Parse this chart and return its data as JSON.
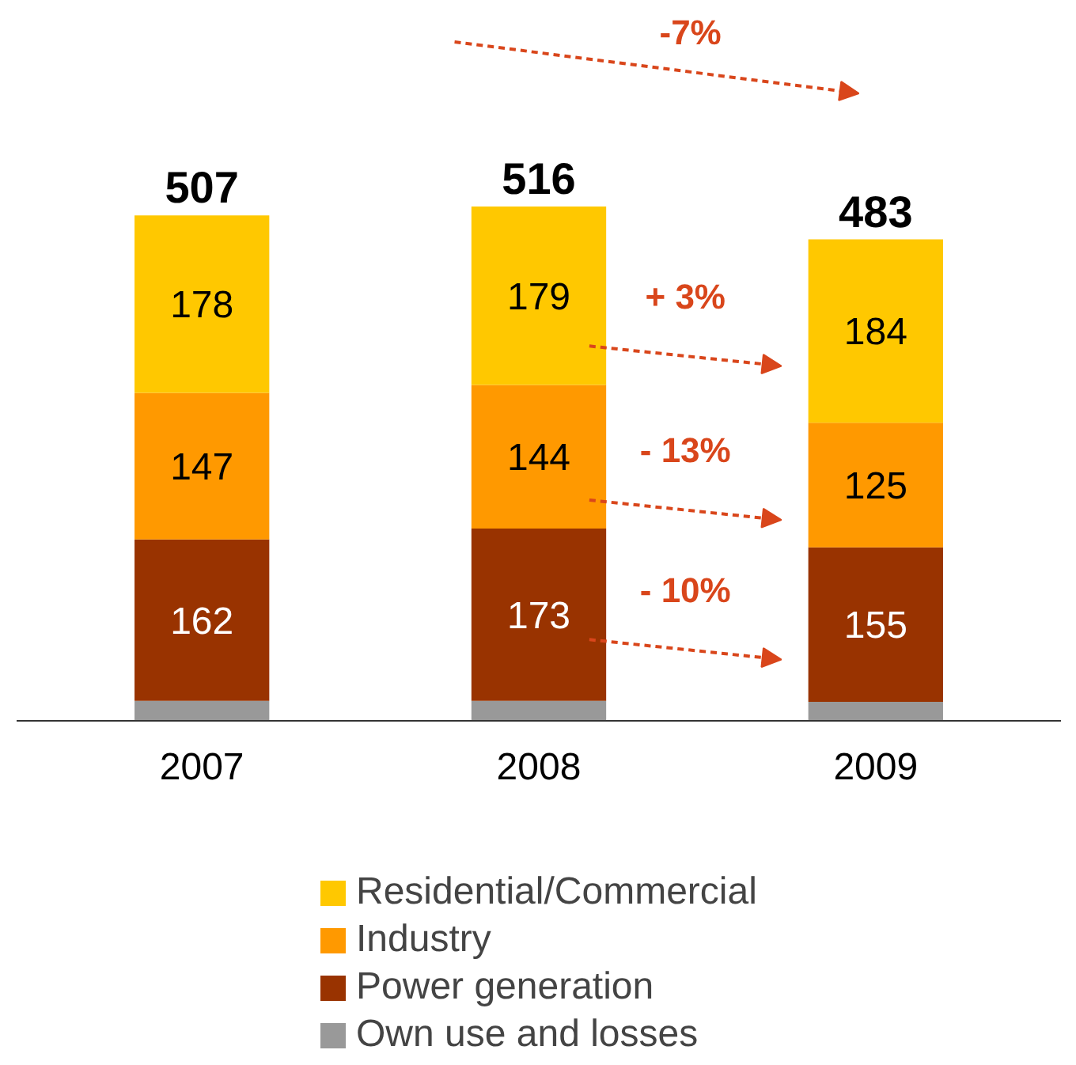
{
  "chart_data": {
    "type": "bar",
    "stacked": true,
    "categories": [
      "2007",
      "2008",
      "2009"
    ],
    "series": [
      {
        "name": "Own use and losses",
        "color": "#999999",
        "values": [
          20,
          20,
          19
        ]
      },
      {
        "name": "Power generation",
        "color": "#993300",
        "values": [
          162,
          173,
          155
        ],
        "value_labels": [
          "162",
          "173",
          "155"
        ]
      },
      {
        "name": "Industry",
        "color": "#ff9900",
        "values": [
          147,
          144,
          125
        ],
        "value_labels": [
          "147",
          "144",
          "125"
        ]
      },
      {
        "name": "Residential/Commercial",
        "color": "#ffc800",
        "values": [
          178,
          179,
          184
        ],
        "value_labels": [
          "178",
          "179",
          "184"
        ]
      }
    ],
    "totals": [
      "507",
      "516",
      "483"
    ],
    "annotations": [
      "-7%",
      "+ 3%",
      "- 13%",
      "- 10%"
    ],
    "legend": "bottom"
  }
}
